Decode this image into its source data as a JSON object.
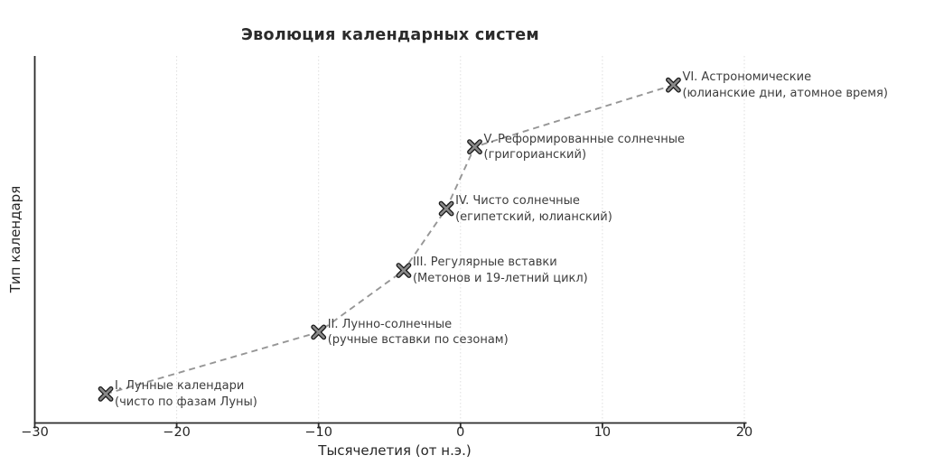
{
  "chart_data": {
    "type": "line",
    "title": "Эволюция календарных систем",
    "xlabel": "Тысячелетия (от н.э.)",
    "ylabel": "Тип календаря",
    "xlim": [
      -30,
      20.16
    ],
    "ylim": [
      0.53,
      6.47
    ],
    "grid": "vertical dotted gridlines at x ticks",
    "legend": "none",
    "line_style": "dashed",
    "marker": "X (gray face, black edge)",
    "xticks": [
      {
        "value": -30,
        "label": "−30"
      },
      {
        "value": -20,
        "label": "−20"
      },
      {
        "value": -10,
        "label": "−10"
      },
      {
        "value": 0,
        "label": "0"
      },
      {
        "value": 10,
        "label": "10"
      },
      {
        "value": 20,
        "label": "20"
      }
    ],
    "points": [
      {
        "x": -25,
        "y": 1,
        "label": "I. Лунные календари",
        "sublabel": "(чисто по фазам Луны)"
      },
      {
        "x": -10,
        "y": 2,
        "label": "II. Лунно-солнечные",
        "sublabel": "(ручные вставки по сезонам)"
      },
      {
        "x": -4,
        "y": 3,
        "label": "III. Регулярные вставки",
        "sublabel": "(Метонов и 19-летний цикл)"
      },
      {
        "x": -1,
        "y": 4,
        "label": "IV. Чисто солнечные",
        "sublabel": "(египетский, юлианский)"
      },
      {
        "x": 1,
        "y": 5,
        "label": "V. Реформированные солнечные",
        "sublabel": "(григорианский)"
      },
      {
        "x": 15,
        "y": 6,
        "label": "VI. Астрономические",
        "sublabel": "(юлианские дни, атомное время)"
      }
    ],
    "colors": {
      "background": "#ffffff",
      "line": "#969696",
      "marker_face": "#8a8a8a",
      "marker_edge": "#1a1a1a",
      "grid": "#dedede",
      "spine": "#2b2b2b",
      "tick": "#2b2b2b",
      "title_text": "#2b2b2b",
      "axis_text": "#262626",
      "annotation_text": "#3d3d3d"
    }
  }
}
